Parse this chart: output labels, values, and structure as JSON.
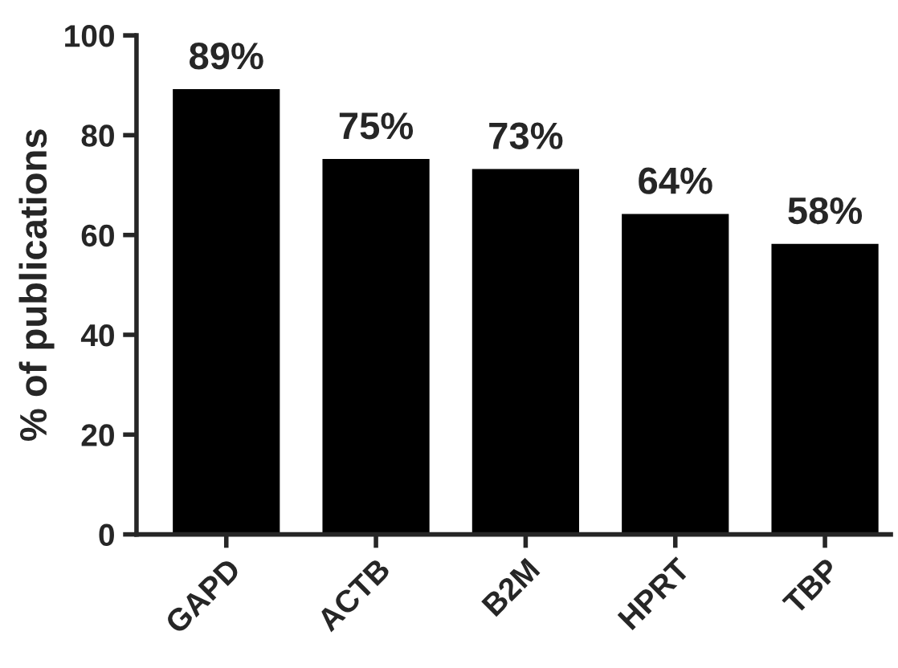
{
  "chart_data": {
    "type": "bar",
    "ylabel": "% of publications",
    "categories": [
      "GAPD",
      "ACTB",
      "B2M",
      "HPRT",
      "TBP"
    ],
    "values": [
      89,
      75,
      73,
      64,
      58
    ],
    "value_labels": [
      "89%",
      "75%",
      "73%",
      "64%",
      "58%"
    ],
    "color": "#000000",
    "ylim": [
      0,
      100
    ],
    "yticks": [
      0,
      20,
      40,
      60,
      80,
      100
    ],
    "grid": false,
    "legend": false
  }
}
